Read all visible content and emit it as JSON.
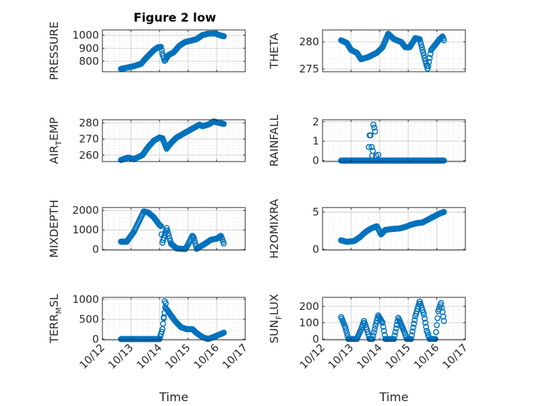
{
  "figure": {
    "title": "Figure 2 low"
  },
  "style": {
    "marker_color": "#0072BD",
    "grid_color": "#c8c8c8",
    "axis_color": "#262626"
  },
  "chart_data": [
    {
      "id": "pressure",
      "type": "scatter",
      "marker": "circle-open",
      "ylabel": "PRESSURE",
      "xlim": [
        0,
        5
      ],
      "ylim": [
        720,
        1040
      ],
      "yticks": [
        800,
        900,
        1000
      ],
      "yticklabels": [
        "800",
        "900",
        "1000"
      ],
      "xticks": [
        0,
        1,
        2,
        3,
        4,
        5
      ],
      "xticklabels": [],
      "grid": true,
      "title": "Figure 2 low",
      "xlabel": "",
      "series": [
        {
          "type": "piecewise",
          "pts": [
            [
              0.65,
              742
            ],
            [
              1.05,
              760
            ],
            [
              1.35,
              780
            ],
            [
              1.55,
              830
            ],
            [
              1.8,
              885
            ],
            [
              1.95,
              908
            ],
            [
              2.05,
              910
            ],
            [
              2.1,
              860
            ],
            [
              2.18,
              800
            ],
            [
              2.3,
              845
            ],
            [
              2.5,
              870
            ],
            [
              2.7,
              920
            ],
            [
              2.9,
              948
            ],
            [
              3.1,
              958
            ],
            [
              3.3,
              970
            ],
            [
              3.5,
              1000
            ],
            [
              3.7,
              1012
            ],
            [
              3.95,
              1013
            ],
            [
              4.15,
              997
            ],
            [
              4.25,
              992
            ]
          ],
          "start": 0.65,
          "end": 4.25,
          "step": 0.025
        }
      ]
    },
    {
      "id": "theta",
      "type": "scatter",
      "marker": "circle-open",
      "ylabel": "THETA",
      "xlim": [
        0,
        5
      ],
      "ylim": [
        274.5,
        282.2
      ],
      "yticks": [
        275,
        280
      ],
      "yticklabels": [
        "275",
        "280"
      ],
      "xticks": [
        0,
        1,
        2,
        3,
        4,
        5
      ],
      "xticklabels": [],
      "grid": true,
      "xlabel": "",
      "series": [
        {
          "type": "piecewise",
          "pts": [
            [
              0.65,
              280.3
            ],
            [
              0.85,
              279.8
            ],
            [
              1.0,
              278.5
            ],
            [
              1.2,
              278.0
            ],
            [
              1.35,
              276.8
            ],
            [
              1.6,
              277.2
            ],
            [
              1.9,
              278.0
            ],
            [
              2.1,
              279.0
            ],
            [
              2.3,
              281.5
            ],
            [
              2.5,
              280.5
            ],
            [
              2.75,
              280.0
            ],
            [
              2.9,
              279.0
            ],
            [
              3.05,
              279.0
            ],
            [
              3.25,
              280.7
            ],
            [
              3.4,
              280.5
            ],
            [
              3.5,
              278.5
            ],
            [
              3.6,
              276.5
            ],
            [
              3.68,
              275.0
            ],
            [
              3.8,
              278.5
            ],
            [
              3.95,
              279.5
            ],
            [
              4.1,
              280.5
            ],
            [
              4.2,
              281.0
            ],
            [
              4.25,
              280.3
            ]
          ],
          "start": 0.65,
          "end": 4.25,
          "step": 0.025
        }
      ]
    },
    {
      "id": "air_temp",
      "type": "scatter",
      "marker": "circle-open",
      "ylabel_main": "AIR",
      "ylabel_sub": "T",
      "ylabel_tail": "EMP",
      "xlim": [
        0,
        5
      ],
      "ylim": [
        256,
        282
      ],
      "yticks": [
        260,
        270,
        280
      ],
      "yticklabels": [
        "260",
        "270",
        "280"
      ],
      "xticks": [
        0,
        1,
        2,
        3,
        4,
        5
      ],
      "xticklabels": [],
      "grid": true,
      "xlabel": "",
      "series": [
        {
          "type": "piecewise",
          "pts": [
            [
              0.65,
              257
            ],
            [
              0.9,
              258.5
            ],
            [
              1.1,
              257.5
            ],
            [
              1.4,
              260
            ],
            [
              1.6,
              265
            ],
            [
              1.8,
              269
            ],
            [
              2.0,
              271
            ],
            [
              2.1,
              270.5
            ],
            [
              2.25,
              264
            ],
            [
              2.4,
              267.5
            ],
            [
              2.6,
              271
            ],
            [
              2.8,
              273
            ],
            [
              3.0,
              275
            ],
            [
              3.2,
              277
            ],
            [
              3.4,
              279
            ],
            [
              3.5,
              278
            ],
            [
              3.7,
              279
            ],
            [
              3.9,
              281
            ],
            [
              4.1,
              280
            ],
            [
              4.25,
              279.5
            ]
          ],
          "start": 0.65,
          "end": 4.25,
          "step": 0.025
        }
      ]
    },
    {
      "id": "rainfall",
      "type": "scatter",
      "marker": "circle-open",
      "ylabel": "RAINFALL",
      "xlim": [
        0,
        5
      ],
      "ylim": [
        -0.05,
        2.1
      ],
      "yticks": [
        0,
        1,
        2
      ],
      "yticklabels": [
        "0",
        "1",
        "2"
      ],
      "xticks": [
        0,
        1,
        2,
        3,
        4,
        5
      ],
      "xticklabels": [],
      "grid": true,
      "xlabel": "",
      "series": [
        {
          "type": "const",
          "value": 0,
          "start": 0.65,
          "end": 4.25,
          "step": 0.02
        },
        {
          "type": "points",
          "pts": [
            [
              1.62,
              0.7
            ],
            [
              1.65,
              1.3
            ],
            [
              1.68,
              1.3
            ],
            [
              1.72,
              0.7
            ],
            [
              1.74,
              0.25
            ],
            [
              1.76,
              0.5
            ],
            [
              1.78,
              1.85
            ],
            [
              1.81,
              1.7
            ],
            [
              1.84,
              1.5
            ],
            [
              1.87,
              0.25
            ],
            [
              1.95,
              0.3
            ]
          ]
        }
      ]
    },
    {
      "id": "mixdepth",
      "type": "scatter",
      "marker": "circle-open",
      "ylabel": "MIXDEPTH",
      "xlim": [
        0,
        5
      ],
      "ylim": [
        -30,
        2150
      ],
      "yticks": [
        0,
        1000,
        2000
      ],
      "yticklabels": [
        "0",
        "1000",
        "2000"
      ],
      "xticks": [
        0,
        1,
        2,
        3,
        4,
        5
      ],
      "xticklabels": [],
      "grid": true,
      "xlabel": "",
      "series": [
        {
          "type": "piecewise",
          "pts": [
            [
              0.65,
              400
            ],
            [
              0.85,
              400
            ],
            [
              1.1,
              900
            ],
            [
              1.3,
              1500
            ],
            [
              1.45,
              1950
            ],
            [
              1.6,
              1900
            ],
            [
              1.8,
              1650
            ],
            [
              2.0,
              1250
            ],
            [
              2.05,
              1200
            ],
            [
              2.1,
              350
            ],
            [
              2.25,
              1100
            ],
            [
              2.4,
              300
            ],
            [
              2.6,
              50
            ],
            [
              2.9,
              20
            ],
            [
              3.0,
              250
            ],
            [
              3.15,
              700
            ],
            [
              3.2,
              600
            ],
            [
              3.3,
              30
            ],
            [
              3.6,
              300
            ],
            [
              3.8,
              500
            ],
            [
              4.0,
              550
            ],
            [
              4.15,
              700
            ],
            [
              4.25,
              300
            ]
          ],
          "start": 0.65,
          "end": 4.25,
          "step": 0.025
        }
      ]
    },
    {
      "id": "h2omixra",
      "type": "scatter",
      "marker": "circle-open",
      "ylabel": "H2OMIXRA",
      "xlim": [
        0,
        5
      ],
      "ylim": [
        -0.1,
        5.6
      ],
      "yticks": [
        0,
        5
      ],
      "yticklabels": [
        "0",
        "5"
      ],
      "xticks": [
        0,
        1,
        2,
        3,
        4,
        5
      ],
      "xticklabels": [],
      "grid": true,
      "xlabel": "",
      "series": [
        {
          "type": "piecewise",
          "pts": [
            [
              0.65,
              1.2
            ],
            [
              0.85,
              1.0
            ],
            [
              1.1,
              1.1
            ],
            [
              1.3,
              1.6
            ],
            [
              1.5,
              2.3
            ],
            [
              1.7,
              2.8
            ],
            [
              1.9,
              3.1
            ],
            [
              2.05,
              2.0
            ],
            [
              2.2,
              2.6
            ],
            [
              2.4,
              2.7
            ],
            [
              2.7,
              2.8
            ],
            [
              2.9,
              3.0
            ],
            [
              3.1,
              3.3
            ],
            [
              3.3,
              3.5
            ],
            [
              3.5,
              3.6
            ],
            [
              3.7,
              4.0
            ],
            [
              3.9,
              4.4
            ],
            [
              4.1,
              4.8
            ],
            [
              4.25,
              5.0
            ]
          ],
          "start": 0.65,
          "end": 4.25,
          "step": 0.025
        }
      ]
    },
    {
      "id": "terr_msl",
      "type": "scatter",
      "marker": "circle-open",
      "ylabel_main": "TERR",
      "ylabel_sub": "M",
      "ylabel_tail": "SL",
      "xlim": [
        0,
        5
      ],
      "ylim": [
        -20,
        1050
      ],
      "yticks": [
        0,
        500,
        1000
      ],
      "yticklabels": [
        "0",
        "500",
        "1000"
      ],
      "xticks": [
        0,
        1,
        2,
        3,
        4,
        5
      ],
      "xticklabels": [
        "10/12",
        "10/13",
        "10/14",
        "10/15",
        "10/16",
        "10/17"
      ],
      "grid": true,
      "xlabel": "Time",
      "series": [
        {
          "type": "piecewise",
          "pts": [
            [
              0.65,
              0
            ],
            [
              2.0,
              0
            ],
            [
              2.1,
              250
            ],
            [
              2.2,
              800
            ],
            [
              2.35,
              650
            ],
            [
              2.55,
              450
            ],
            [
              2.75,
              300
            ],
            [
              2.95,
              250
            ],
            [
              3.15,
              250
            ],
            [
              3.3,
              150
            ],
            [
              3.5,
              50
            ],
            [
              3.7,
              0
            ],
            [
              3.85,
              40
            ],
            [
              4.05,
              100
            ],
            [
              4.25,
              160
            ]
          ],
          "start": 0.65,
          "end": 4.25,
          "step": 0.025
        },
        {
          "type": "points",
          "pts": [
            [
              2.15,
              550
            ],
            [
              2.18,
              950
            ],
            [
              2.22,
              900
            ]
          ]
        }
      ]
    },
    {
      "id": "sun_flux",
      "type": "scatter",
      "marker": "circle-open",
      "ylabel_main": "SUN",
      "ylabel_sub": "F",
      "ylabel_tail": "LUX",
      "xlim": [
        0,
        5
      ],
      "ylim": [
        -5,
        255
      ],
      "yticks": [
        0,
        100,
        200
      ],
      "yticklabels": [
        "0",
        "100",
        "200"
      ],
      "xticks": [
        0,
        1,
        2,
        3,
        4,
        5
      ],
      "xticklabels": [
        "10/12",
        "10/13",
        "10/14",
        "10/15",
        "10/16",
        "10/17"
      ],
      "grid": true,
      "xlabel": "Time",
      "series": [
        {
          "type": "piecewise",
          "pts": [
            [
              0.65,
              135
            ],
            [
              0.8,
              70
            ],
            [
              0.9,
              0
            ],
            [
              1.2,
              0
            ],
            [
              1.35,
              60
            ],
            [
              1.45,
              110
            ],
            [
              1.55,
              60
            ],
            [
              1.65,
              0
            ],
            [
              1.75,
              0
            ],
            [
              1.85,
              80
            ],
            [
              1.95,
              145
            ],
            [
              2.1,
              100
            ],
            [
              2.2,
              0
            ],
            [
              2.5,
              0
            ],
            [
              2.65,
              130
            ],
            [
              2.85,
              50
            ],
            [
              2.95,
              0
            ],
            [
              3.1,
              0
            ],
            [
              3.25,
              140
            ],
            [
              3.4,
              230
            ],
            [
              3.55,
              150
            ],
            [
              3.65,
              50
            ],
            [
              3.75,
              0
            ],
            [
              3.95,
              0
            ],
            [
              4.05,
              170
            ],
            [
              4.15,
              220
            ],
            [
              4.25,
              110
            ]
          ],
          "start": 0.65,
          "end": 4.25,
          "step": 0.025
        }
      ]
    }
  ]
}
